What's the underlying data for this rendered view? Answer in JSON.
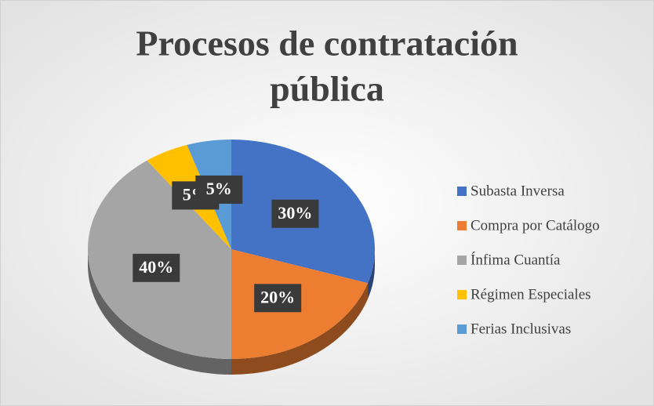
{
  "chart_data": {
    "type": "pie",
    "title": [
      "Procesos de contratación",
      "pública"
    ],
    "categories": [
      "Subasta Inversa",
      "Compra por Catálogo",
      "Ínfima Cuantía",
      "Régimen Especiales",
      "Ferias Inclusivas"
    ],
    "values": [
      30,
      20,
      40,
      5,
      5
    ],
    "value_labels": [
      "30%",
      "20%",
      "40%",
      "5%",
      "5%"
    ],
    "colors": [
      "#4472c4",
      "#ed7d31",
      "#a5a5a5",
      "#ffc000",
      "#5b9bd5"
    ],
    "legend": "right"
  }
}
